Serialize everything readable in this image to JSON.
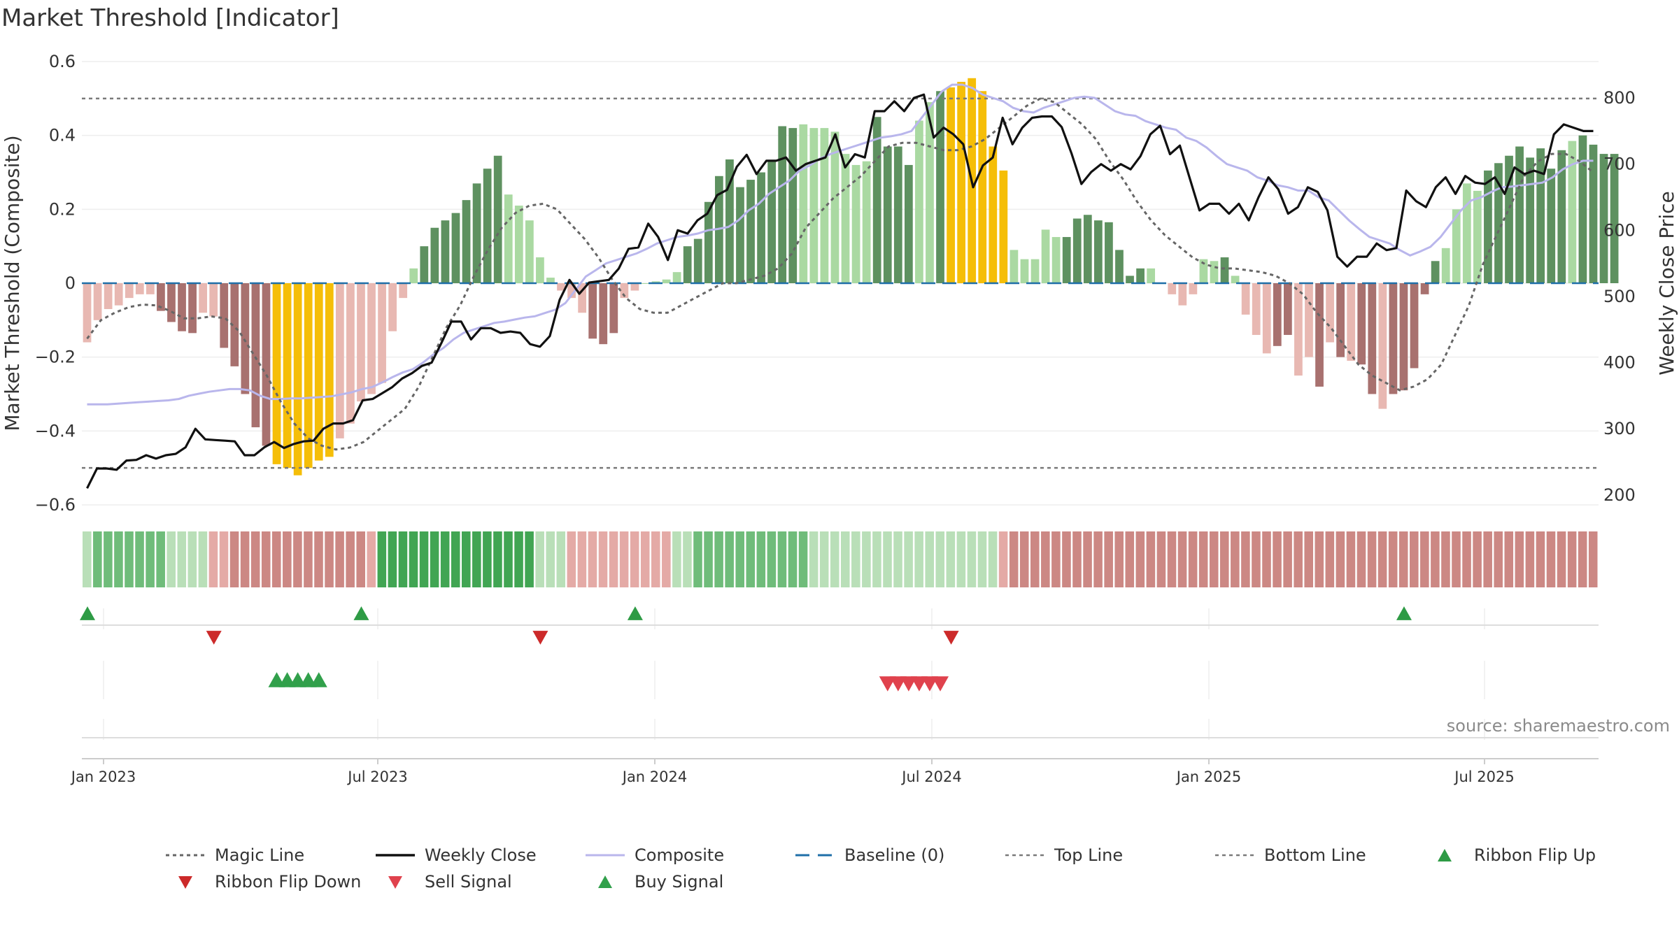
{
  "title": "Market Threshold [Indicator]",
  "source": "source: sharemaestro.com",
  "colors": {
    "strong_green": "#5e9160",
    "light_green": "#aad9a2",
    "strong_red": "#a8716f",
    "light_red": "#e8b8b2",
    "gold": "#f5be08",
    "close": "#111111",
    "composite": "#b9b6ec",
    "magic": "#666666",
    "baseline": "#1f6fa8",
    "threshold": "#7a7a7a",
    "flip_up": "#2e9b45",
    "flip_down": "#cc2a2a",
    "sell": "#e0424d",
    "buy": "#31a04b"
  },
  "chart_data": {
    "type": "bar",
    "title": "Market Threshold [Indicator]",
    "ylabel_left": "Market Threshold (Composite)",
    "ylabel_right": "Weekly Close Price",
    "y_left_ticks": [
      "0.6",
      "0.4",
      "0.2",
      "0",
      "−0.2",
      "−0.4",
      "−0.6"
    ],
    "y_left_range": [
      -0.6,
      0.6
    ],
    "y_right_ticks": [
      "800",
      "700",
      "600",
      "500",
      "400",
      "300",
      "200"
    ],
    "y_right_range": [
      185,
      855
    ],
    "x_ticks": [
      "Jan 2023",
      "Jul 2023",
      "Jan 2024",
      "Jul 2024",
      "Jan 2025",
      "Jul 2025"
    ],
    "top_line": 0.5,
    "bottom_line": -0.5,
    "baseline": 0,
    "weeks": 144,
    "composite_bars": [
      -0.16,
      -0.1,
      -0.07,
      -0.06,
      -0.04,
      -0.03,
      -0.03,
      -0.075,
      -0.105,
      -0.13,
      -0.135,
      -0.08,
      -0.09,
      -0.175,
      -0.225,
      -0.3,
      -0.39,
      -0.44,
      -0.49,
      -0.5,
      -0.52,
      -0.5,
      -0.48,
      -0.47,
      -0.42,
      -0.38,
      -0.32,
      -0.3,
      -0.27,
      -0.13,
      -0.04,
      0.04,
      0.1,
      0.15,
      0.17,
      0.19,
      0.225,
      0.27,
      0.31,
      0.345,
      0.24,
      0.21,
      0.17,
      0.07,
      0.015,
      -0.02,
      -0.04,
      -0.08,
      -0.15,
      -0.165,
      -0.135,
      -0.04,
      -0.02,
      0.0,
      0.005,
      0.01,
      0.03,
      0.1,
      0.12,
      0.22,
      0.29,
      0.335,
      0.26,
      0.28,
      0.3,
      0.33,
      0.425,
      0.42,
      0.43,
      0.42,
      0.42,
      0.41,
      0.35,
      0.32,
      0.33,
      0.45,
      0.37,
      0.37,
      0.32,
      0.44,
      0.49,
      0.52,
      0.53,
      0.545,
      0.555,
      0.52,
      0.37,
      0.305,
      0.09,
      0.065,
      0.065,
      0.145,
      0.125,
      0.125,
      0.175,
      0.185,
      0.17,
      0.165,
      0.09,
      0.02,
      0.04,
      0.04,
      0.0,
      -0.03,
      -0.06,
      -0.03,
      0.065,
      0.06,
      0.07,
      0.02,
      -0.085,
      -0.14,
      -0.19,
      -0.17,
      -0.14,
      -0.25,
      -0.2,
      -0.28,
      -0.16,
      -0.2,
      -0.21,
      -0.22,
      -0.3,
      -0.34,
      -0.3,
      -0.29,
      -0.23,
      -0.03,
      0.06,
      0.095,
      0.2,
      0.27,
      0.25,
      0.305,
      0.325,
      0.345,
      0.37,
      0.34,
      0.365,
      0.31,
      0.36,
      0.385,
      0.4,
      0.375,
      0.35,
      0.35
    ],
    "bar_shades": "LLLLLLLSSSSLLSSSSSGGGGGGLLLLLLLLSSSSSSSSLLLLLLLLSSSLLLLLLSSSSSSSSSSSLLLLLLLSSSSLLSGGGGGGLLLLLSSSSSSSSLLLLLLLSLLLLSSLLSLSLSSLSSSSSLLLLSSSSSSSSLSSSSSSL",
    "weekly_close": [
      210,
      240,
      240,
      238,
      252,
      253,
      260,
      255,
      260,
      262,
      272,
      300,
      284,
      283,
      282,
      281,
      260,
      260,
      272,
      280,
      271,
      277,
      281,
      282,
      300,
      308,
      308,
      313,
      343,
      345,
      354,
      363,
      376,
      384,
      395,
      400,
      430,
      462,
      462,
      435,
      452,
      452,
      445,
      447,
      445,
      428,
      424,
      440,
      495,
      525,
      504,
      521,
      523,
      525,
      542,
      572,
      574,
      610,
      590,
      555,
      600,
      595,
      615,
      625,
      653,
      661,
      696,
      714,
      685,
      705,
      705,
      710,
      690,
      700,
      705,
      710,
      745,
      695,
      715,
      710,
      780,
      780,
      795,
      780,
      800,
      805,
      740,
      755,
      745,
      730,
      665,
      698,
      710,
      770,
      730,
      755,
      770,
      772,
      772,
      756,
      716,
      670,
      688,
      700,
      690,
      700,
      692,
      712,
      745,
      758,
      715,
      728,
      679,
      630,
      640,
      640,
      625,
      640,
      615,
      650,
      680,
      662,
      625,
      635,
      665,
      658,
      630,
      560,
      545,
      560,
      560,
      580,
      570,
      573,
      660,
      644,
      635,
      665,
      680,
      655,
      682,
      672,
      670,
      680,
      655,
      695,
      685,
      690,
      685,
      745,
      760,
      755,
      750,
      750
    ],
    "weekly_close_x_offset": 0,
    "composite_line": [
      337,
      337,
      337,
      338,
      339,
      340,
      341,
      342,
      343,
      345,
      350,
      353,
      356,
      358,
      360,
      360,
      358,
      350,
      345,
      345,
      346,
      346,
      347,
      348,
      349,
      352,
      355,
      360,
      363,
      370,
      378,
      385,
      390,
      400,
      412,
      422,
      435,
      445,
      450,
      455,
      460,
      462,
      465,
      468,
      470,
      475,
      480,
      490,
      510,
      530,
      540,
      550,
      555,
      560,
      565,
      572,
      580,
      585,
      590,
      592,
      595,
      600,
      602,
      605,
      615,
      630,
      640,
      655,
      665,
      675,
      690,
      698,
      708,
      715,
      720,
      725,
      730,
      735,
      740,
      742,
      745,
      750,
      770,
      790,
      810,
      820,
      820,
      815,
      805,
      800,
      795,
      785,
      780,
      778,
      785,
      790,
      795,
      800,
      802,
      800,
      790,
      780,
      775,
      773,
      765,
      760,
      755,
      752,
      740,
      735,
      725,
      712,
      700,
      695,
      690,
      680,
      675,
      668,
      665,
      660,
      660,
      650,
      645,
      630,
      615,
      602,
      590,
      585,
      580,
      570,
      562,
      568,
      575,
      590,
      610,
      630,
      645,
      650,
      658,
      665,
      666,
      668,
      670,
      672,
      680,
      692,
      700,
      705,
      705
    ],
    "magic_line": [
      -0.15,
      -0.1,
      -0.08,
      -0.065,
      -0.058,
      -0.06,
      -0.075,
      -0.095,
      -0.095,
      -0.09,
      -0.095,
      -0.13,
      -0.19,
      -0.25,
      -0.32,
      -0.38,
      -0.42,
      -0.44,
      -0.45,
      -0.445,
      -0.43,
      -0.4,
      -0.37,
      -0.34,
      -0.28,
      -0.2,
      -0.12,
      -0.06,
      0.02,
      0.09,
      0.15,
      0.19,
      0.21,
      0.215,
      0.2,
      0.16,
      0.12,
      0.07,
      0.01,
      -0.04,
      -0.07,
      -0.08,
      -0.08,
      -0.06,
      -0.04,
      -0.02,
      0.0,
      0.0,
      0.01,
      0.02,
      0.04,
      0.08,
      0.15,
      0.19,
      0.23,
      0.26,
      0.29,
      0.33,
      0.37,
      0.38,
      0.38,
      0.37,
      0.36,
      0.36,
      0.37,
      0.39,
      0.42,
      0.45,
      0.48,
      0.5,
      0.49,
      0.46,
      0.43,
      0.39,
      0.33,
      0.28,
      0.22,
      0.17,
      0.13,
      0.1,
      0.07,
      0.05,
      0.04,
      0.04,
      0.035,
      0.03,
      0.02,
      0.0,
      -0.03,
      -0.08,
      -0.12,
      -0.17,
      -0.22,
      -0.25,
      -0.27,
      -0.29,
      -0.28,
      -0.26,
      -0.22,
      -0.14,
      -0.06,
      0.05,
      0.13,
      0.21,
      0.29,
      0.33,
      0.35,
      0.35,
      0.33,
      0.3
    ],
    "magic_line_x_start_week": 0,
    "ribbon": "LMMMMMMMLLLLrrRRRRRRRRRRRRRrGGGGGGGGGGGGGGGLLLrrrrrrrrrrLLMMMMMMMMMMMLLLLLLLLLLLLLLLLLLrRRRRRRRRRRRRRRRRRRRRRRRRRRRRRRRRRRRRRRRRRRRRRRRRRRRRRRRRRRRGGGGGGGGGGGGGGGGGGGMMM",
    "ribbon_flip_up_weeks": [
      1,
      27,
      53,
      126
    ],
    "ribbon_flip_down_weeks": [
      13,
      44,
      83
    ],
    "buy_signal_weeks": [
      18,
      19,
      20,
      21,
      22
    ],
    "sell_signal_weeks": [
      76,
      77,
      78,
      79,
      80,
      81
    ]
  },
  "legend": [
    {
      "key": "magic",
      "label": "Magic Line"
    },
    {
      "key": "close",
      "label": "Weekly Close"
    },
    {
      "key": "composite",
      "label": "Composite"
    },
    {
      "key": "baseline",
      "label": "Baseline (0)"
    },
    {
      "key": "top",
      "label": "Top Line"
    },
    {
      "key": "bottom",
      "label": "Bottom Line"
    },
    {
      "key": "flip_up",
      "label": "Ribbon Flip Up"
    },
    {
      "key": "flip_down",
      "label": "Ribbon Flip Down"
    },
    {
      "key": "sell",
      "label": "Sell Signal"
    },
    {
      "key": "buy",
      "label": "Buy Signal"
    }
  ]
}
